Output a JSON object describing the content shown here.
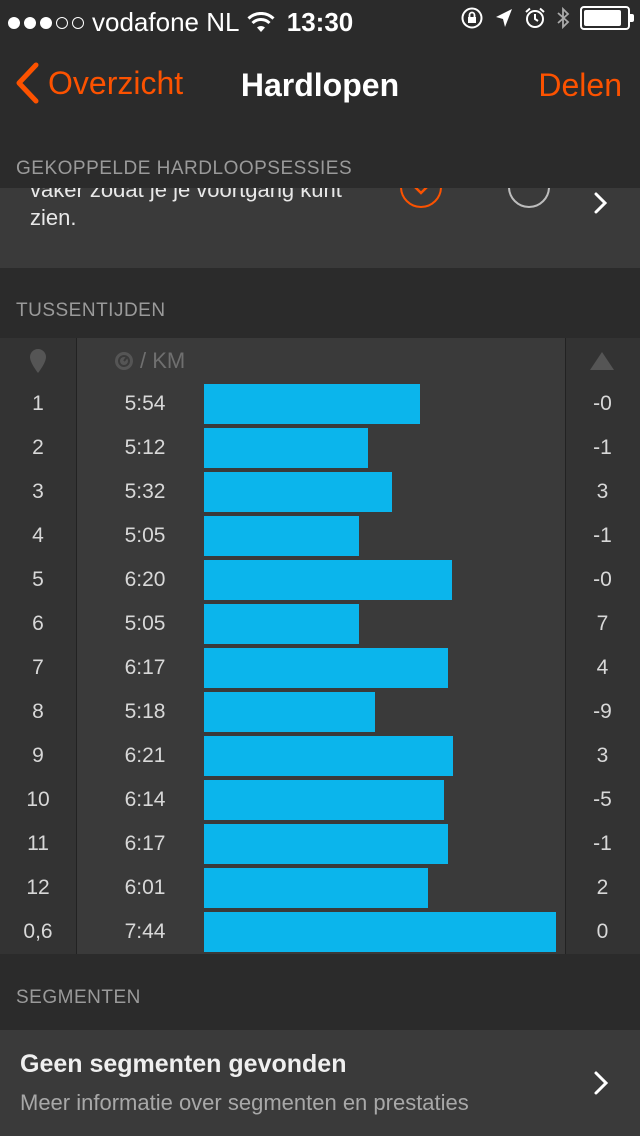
{
  "status_bar": {
    "carrier": "vodafone NL",
    "time": "13:30",
    "signal_bars_filled": 3,
    "signal_bars_total": 5,
    "battery_level": 0.9
  },
  "nav": {
    "back_label": "Overzicht",
    "title": "Hardlopen",
    "share_label": "Delen"
  },
  "linked_runs": {
    "header": "GEKOPPELDE HARDLOOPSESSIES",
    "text": "vaker zodat je je voortgang kunt zien."
  },
  "splits": {
    "header": "TUSSENTIJDEN",
    "pace_unit": "/ KM",
    "rows": [
      {
        "split": "1",
        "pace": "5:54",
        "elevation": "-0"
      },
      {
        "split": "2",
        "pace": "5:12",
        "elevation": "-1"
      },
      {
        "split": "3",
        "pace": "5:32",
        "elevation": "3"
      },
      {
        "split": "4",
        "pace": "5:05",
        "elevation": "-1"
      },
      {
        "split": "5",
        "pace": "6:20",
        "elevation": "-0"
      },
      {
        "split": "6",
        "pace": "5:05",
        "elevation": "7"
      },
      {
        "split": "7",
        "pace": "6:17",
        "elevation": "4"
      },
      {
        "split": "8",
        "pace": "5:18",
        "elevation": "-9"
      },
      {
        "split": "9",
        "pace": "6:21",
        "elevation": "3"
      },
      {
        "split": "10",
        "pace": "6:14",
        "elevation": "-5"
      },
      {
        "split": "11",
        "pace": "6:17",
        "elevation": "-1"
      },
      {
        "split": "12",
        "pace": "6:01",
        "elevation": "2"
      },
      {
        "split": "0,6",
        "pace": "7:44",
        "elevation": "0"
      }
    ]
  },
  "segments": {
    "header": "SEGMENTEN",
    "title": "Geen segmenten gevonden",
    "subtitle": "Meer informatie over segmenten en prestaties"
  },
  "colors": {
    "accent": "#fc5200",
    "bar": "#0bb5ec",
    "background": "#2b2b2b",
    "card": "#3a3a3a"
  },
  "icons": [
    "wifi-icon",
    "lock-rotation-icon",
    "location-arrow-icon",
    "alarm-icon",
    "bluetooth-icon",
    "battery-icon",
    "back-chevron-icon",
    "checkmark-icon",
    "chevron-right-icon",
    "pin-icon",
    "pace-icon",
    "elevation-icon"
  ]
}
